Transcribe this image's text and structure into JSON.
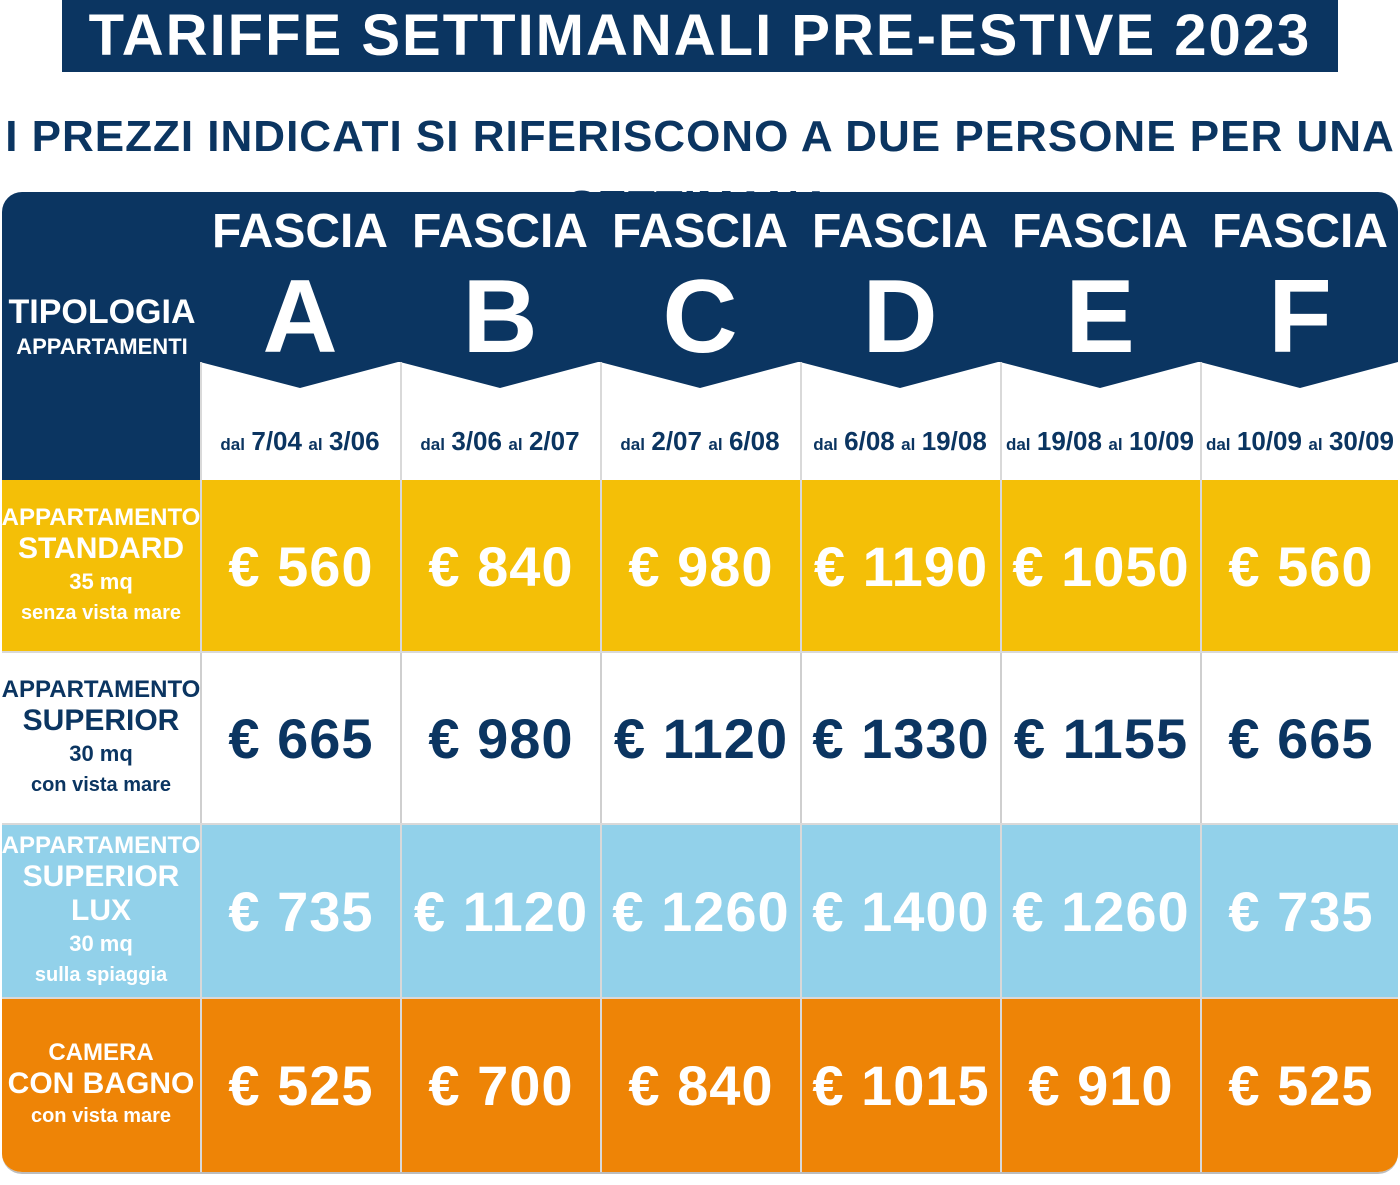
{
  "title": "TARIFFE SETTIMANALI PRE-ESTIVE 2023",
  "subtitle": "I PREZZI INDICATI SI RIFERISCONO A DUE PERSONE PER UNA SETTIMANA",
  "header": {
    "tipologia": "TIPOLOGIA",
    "appartamenti": "APPARTAMENTI",
    "columns": [
      {
        "fascia": "FASCIA",
        "letter": "A",
        "dal": "dal",
        "from": "7/04",
        "al": "al",
        "to": "3/06"
      },
      {
        "fascia": "FASCIA",
        "letter": "B",
        "dal": "dal",
        "from": "3/06",
        "al": "al",
        "to": "2/07"
      },
      {
        "fascia": "FASCIA",
        "letter": "C",
        "dal": "dal",
        "from": "2/07",
        "al": "al",
        "to": "6/08"
      },
      {
        "fascia": "FASCIA",
        "letter": "D",
        "dal": "dal",
        "from": "6/08",
        "al": "al",
        "to": "19/08"
      },
      {
        "fascia": "FASCIA",
        "letter": "E",
        "dal": "dal",
        "from": "19/08",
        "al": "al",
        "to": "10/09"
      },
      {
        "fascia": "FASCIA",
        "letter": "F",
        "dal": "dal",
        "from": "10/09",
        "al": "al",
        "to": "30/09"
      }
    ]
  },
  "rows": [
    {
      "l1": "APPARTAMENTO",
      "l2": "STANDARD",
      "l3": "35 mq",
      "l4": "senza vista mare",
      "prices": [
        "€ 560",
        "€ 840",
        "€ 980",
        "€ 1190",
        "€ 1050",
        "€ 560"
      ]
    },
    {
      "l1": "APPARTAMENTO",
      "l2": "SUPERIOR",
      "l3": "30 mq",
      "l4": "con vista mare",
      "prices": [
        "€ 665",
        "€ 980",
        "€ 1120",
        "€ 1330",
        "€ 1155",
        "€ 665"
      ]
    },
    {
      "l1": "APPARTAMENTO",
      "l2": "SUPERIOR LUX",
      "l3": "30 mq",
      "l4": "sulla spiaggia",
      "prices": [
        "€ 735",
        "€ 1120",
        "€ 1260",
        "€ 1400",
        "€ 1260",
        "€ 735"
      ]
    },
    {
      "l1": "CAMERA",
      "l2": "CON BAGNO",
      "l3": "",
      "l4": "con vista mare",
      "prices": [
        "€ 525",
        "€ 700",
        "€ 840",
        "€ 1015",
        "€ 910",
        "€ 525"
      ]
    }
  ],
  "colors": {
    "navy": "#0b3561",
    "standard": "#f4bf07",
    "superior": "#ffffff",
    "superior_lux": "#92d1ea",
    "camera": "#ee8406"
  }
}
